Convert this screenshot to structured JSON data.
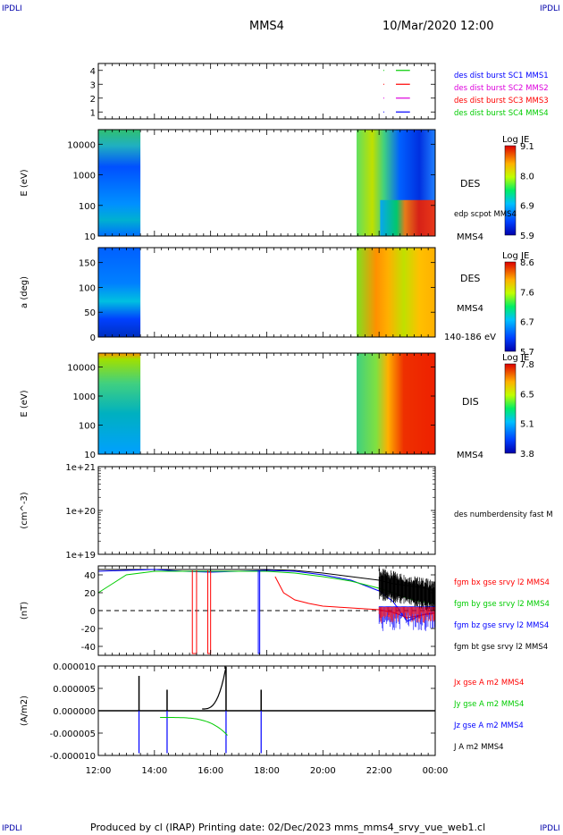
{
  "corner_label": "IPDLI",
  "header": {
    "spacecraft": "MMS4",
    "datetime": "10/Mar/2020 12:00"
  },
  "footer": "Produced by cl (IRAP)   Printing date: 02/Dec/2023   mms_mms4_srvy_vue_web1.cl",
  "x_axis": {
    "ticks": [
      "12:00",
      "14:00",
      "16:00",
      "18:00",
      "20:00",
      "22:00",
      "00:00"
    ],
    "hours": [
      0,
      2,
      4,
      6,
      8,
      10,
      12
    ]
  },
  "colors": {
    "bx": "#ff0000",
    "by": "#00cc00",
    "bz": "#0000ff",
    "bt": "#000000",
    "magenta": "#dd00dd"
  },
  "chart_data": [
    {
      "type": "line",
      "panel": "burst-availability",
      "y_ticks": [
        "4",
        "3",
        "2",
        "1"
      ],
      "ylim": [
        0.5,
        4.5
      ],
      "legend": [
        {
          "name": "des dist burst SC1 MMS1",
          "color": "#0000ff",
          "level": 1
        },
        {
          "name": "des dist burst SC2 MMS2",
          "color": "#dd00dd",
          "level": 2
        },
        {
          "name": "des dist burst SC3 MMS3",
          "color": "#ff0000",
          "level": 3
        },
        {
          "name": "des dist burst SC4 MMS4",
          "color": "#00cc00",
          "level": 4
        }
      ],
      "segments_hours": [
        [
          10.6,
          11.1
        ]
      ]
    },
    {
      "type": "heatmap",
      "panel": "des-energy",
      "ylabel": "E (eV)",
      "y_ticks": [
        "10000",
        "1000",
        "100",
        "10"
      ],
      "ylim": [
        10,
        30000
      ],
      "label": "DES",
      "note": "edp scpot MMS4",
      "sc": "MMS4",
      "colorbar": {
        "title": "Log JE",
        "ticks": [
          "9.1",
          "8.0",
          "6.9",
          "5.9"
        ]
      },
      "data_intervals_hours": [
        [
          0,
          1.5
        ],
        [
          9.2,
          12
        ]
      ]
    },
    {
      "type": "heatmap",
      "panel": "des-pitch",
      "ylabel": "a (deg)",
      "y_ticks": [
        "150",
        "100",
        "50",
        "0"
      ],
      "ylim": [
        0,
        180
      ],
      "label": "DES",
      "sc": "MMS4",
      "energy_range": "140-186 eV",
      "colorbar": {
        "title": "Log JE",
        "ticks": [
          "8.6",
          "7.6",
          "6.7",
          "5.7"
        ]
      },
      "data_intervals_hours": [
        [
          0,
          1.5
        ],
        [
          9.2,
          12
        ]
      ]
    },
    {
      "type": "heatmap",
      "panel": "dis-energy",
      "ylabel": "E (eV)",
      "y_ticks": [
        "10000",
        "1000",
        "100",
        "10"
      ],
      "ylim": [
        10,
        30000
      ],
      "label": "DIS",
      "sc": "MMS4",
      "colorbar": {
        "title": "Log JE",
        "ticks": [
          "7.8",
          "6.5",
          "5.1",
          "3.8"
        ]
      },
      "data_intervals_hours": [
        [
          0,
          1.5
        ],
        [
          9.2,
          12
        ]
      ]
    },
    {
      "type": "line",
      "panel": "density",
      "ylabel": "(cm^-3)",
      "y_ticks": [
        "1e+21",
        "1e+20",
        "1e+19"
      ],
      "legend": [
        {
          "name": "des numberdensity fast M",
          "color": "#000000"
        }
      ],
      "series": []
    },
    {
      "type": "line",
      "panel": "magnetic-field",
      "ylabel": "(nT)",
      "y_ticks": [
        "40",
        "20",
        "0",
        "-20",
        "-40"
      ],
      "ylim": [
        -50,
        50
      ],
      "legend": [
        {
          "name": "fgm bx gse srvy l2 MMS4",
          "color": "#ff0000"
        },
        {
          "name": "fgm by gse srvy l2 MMS4",
          "color": "#00cc00"
        },
        {
          "name": "fgm bz gse srvy l2 MMS4",
          "color": "#0000ff"
        },
        {
          "name": "fgm bt gse srvy l2 MMS4",
          "color": "#000000"
        }
      ],
      "series": [
        {
          "name": "fgm bt gse srvy l2 MMS4",
          "x": [
            0,
            1,
            2,
            3,
            4,
            5,
            6,
            7,
            8,
            9,
            10,
            10.5,
            11,
            11.5,
            12
          ],
          "y": [
            46,
            46,
            46,
            46,
            46,
            46,
            46,
            45,
            42,
            38,
            34,
            30,
            28,
            26,
            22
          ]
        },
        {
          "name": "fgm bz gse srvy l2 MMS4",
          "x": [
            0,
            1,
            2,
            3,
            4,
            5,
            6,
            7,
            8,
            9,
            10,
            10.5,
            11,
            11.5,
            12
          ],
          "y": [
            44,
            45,
            46,
            44,
            43,
            44,
            45,
            44,
            40,
            34,
            22,
            10,
            -12,
            -5,
            -2
          ]
        },
        {
          "name": "fgm by gse srvy l2 MMS4",
          "x": [
            0,
            0.5,
            1,
            2,
            3,
            4,
            5,
            6,
            7,
            8,
            9,
            10,
            10.5,
            11,
            11.5,
            12
          ],
          "y": [
            20,
            30,
            40,
            44,
            44,
            44,
            44,
            44,
            42,
            38,
            33,
            25,
            20,
            14,
            10,
            8
          ]
        },
        {
          "name": "fgm bx gse srvy l2 MMS4",
          "x": [
            6.3,
            6.6,
            7,
            7.5,
            8,
            8.5,
            9,
            9.5,
            10,
            10.5,
            11,
            11.5,
            12
          ],
          "y": [
            38,
            20,
            12,
            8,
            5,
            4,
            3,
            2,
            1,
            -2,
            -8,
            -5,
            -3
          ]
        }
      ]
    },
    {
      "type": "line",
      "panel": "current-density",
      "ylabel": "(A/m2)",
      "y_ticks": [
        "0.000010",
        "0.000005",
        "0.000000",
        "-0.000005",
        "-0.000010"
      ],
      "ylim": [
        -1e-05,
        1e-05
      ],
      "legend": [
        {
          "name": "Jx gse A m2 MMS4",
          "color": "#ff0000"
        },
        {
          "name": "Jy gse A m2 MMS4",
          "color": "#00cc00"
        },
        {
          "name": "Jz gse A m2 MMS4",
          "color": "#0000ff"
        },
        {
          "name": "J A m2 MMS4",
          "color": "#000000"
        }
      ],
      "spikes_hours": [
        1.45,
        2.45,
        4.55,
        5.8
      ],
      "spike_values": [
        7.8e-06,
        4.7e-06,
        9.8e-06,
        4.7e-06
      ]
    }
  ]
}
